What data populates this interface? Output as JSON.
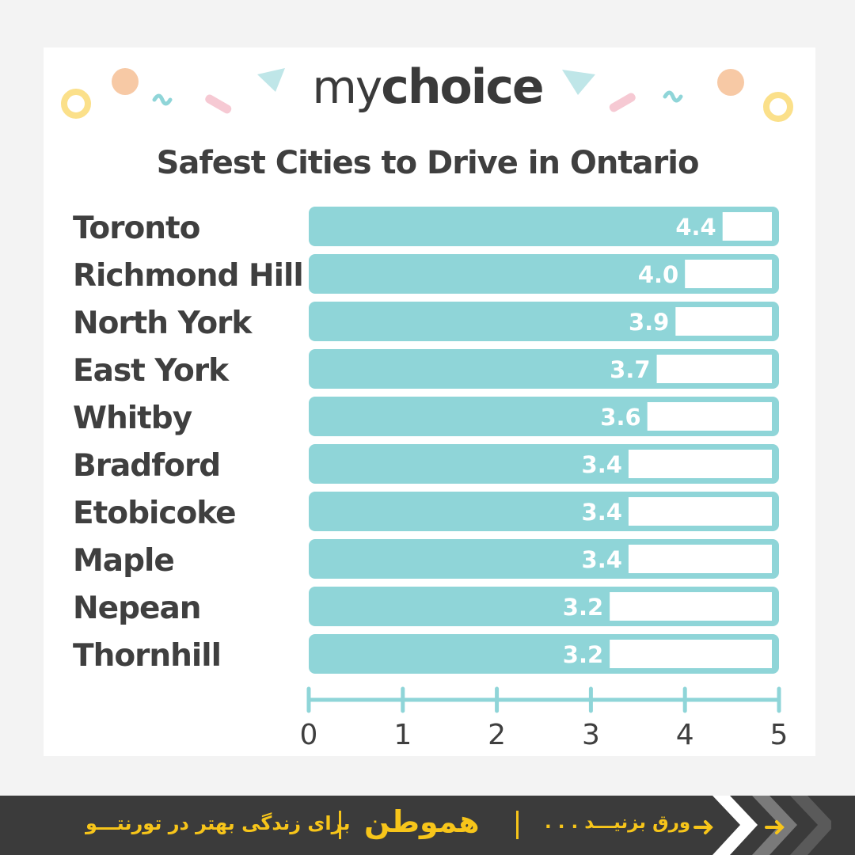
{
  "brand": {
    "part1": "my",
    "part2": "choice"
  },
  "chart_data": {
    "type": "bar",
    "orientation": "horizontal",
    "title": "Safest Cities to Drive in Ontario",
    "categories": [
      "Toronto",
      "Richmond Hill",
      "North York",
      "East York",
      "Whitby",
      "Bradford",
      "Etobicoke",
      "Maple",
      "Nepean",
      "Thornhill"
    ],
    "values": [
      4.4,
      4.0,
      3.9,
      3.7,
      3.6,
      3.4,
      3.4,
      3.4,
      3.2,
      3.2
    ],
    "value_labels": [
      "4.4",
      "4.0",
      "3.9",
      "3.7",
      "3.6",
      "3.4",
      "3.4",
      "3.4",
      "3.2",
      "3.2"
    ],
    "xlim": [
      0,
      5
    ],
    "x_ticks": [
      "0",
      "1",
      "2",
      "3",
      "4",
      "5"
    ],
    "bar_color": "#8fd5d8",
    "label_color": "#3f3f3f",
    "grid": false
  },
  "footer": {
    "tagline": "برای زندگی بهتر در تورنتـــو",
    "logo": "هموطن",
    "swipe": "ورق بزنیـــد . . .",
    "accent_color": "#f7c51a",
    "background": "#3b3b3b"
  }
}
